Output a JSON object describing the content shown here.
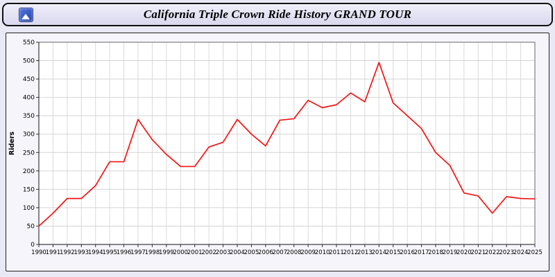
{
  "header": {
    "title": "California Triple Crown Ride History GRAND TOUR"
  },
  "chart_data": {
    "type": "line",
    "title": "California Triple Crown Ride History GRAND TOUR",
    "xlabel": "",
    "ylabel": "Riders",
    "ylim": [
      0,
      550
    ],
    "ytick_step": 50,
    "grid": true,
    "legend": "none",
    "line_color": "#f41414",
    "x": [
      1990,
      1991,
      1992,
      1993,
      1994,
      1995,
      1996,
      1997,
      1998,
      1999,
      2000,
      2001,
      2002,
      2003,
      2004,
      2005,
      2006,
      2007,
      2008,
      2009,
      2010,
      2011,
      2012,
      2013,
      2014,
      2015,
      2016,
      2017,
      2018,
      2019,
      2020,
      2021,
      2022,
      2023,
      2024,
      2025
    ],
    "values": [
      50,
      85,
      125,
      125,
      160,
      225,
      225,
      340,
      285,
      245,
      212,
      212,
      265,
      278,
      340,
      300,
      268,
      338,
      342,
      392,
      372,
      380,
      412,
      388,
      495,
      385,
      350,
      315,
      250,
      215,
      140,
      132,
      85,
      130,
      125,
      124
    ]
  }
}
